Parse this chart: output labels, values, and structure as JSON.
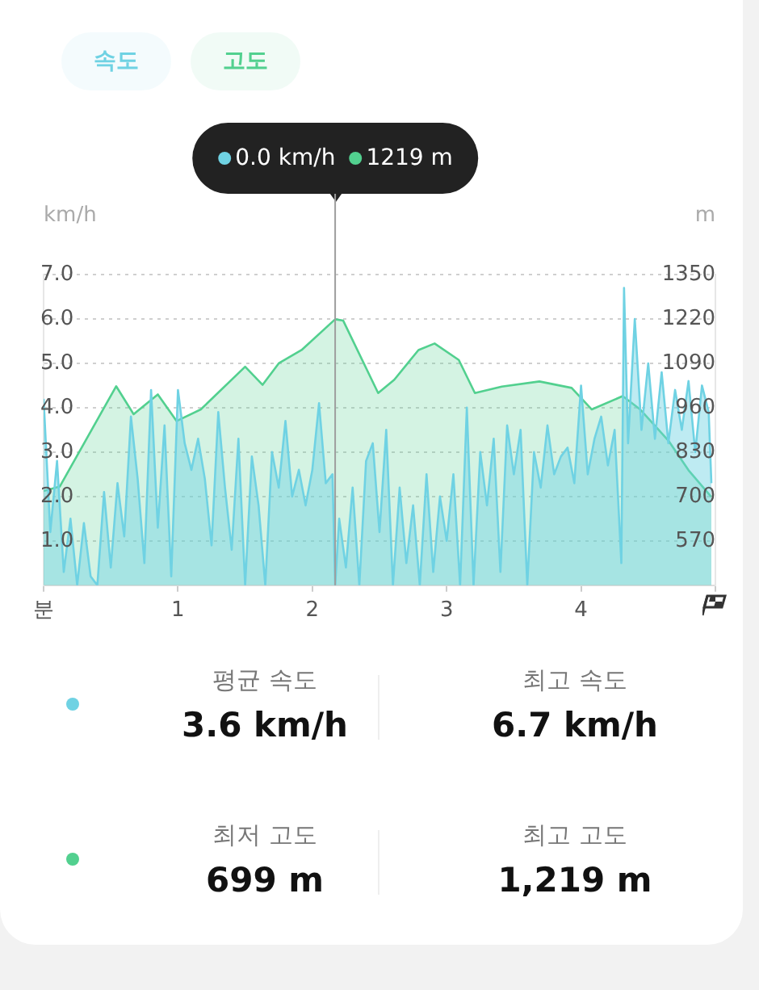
{
  "chart_data": {
    "type": "area",
    "ylabel": "km/h",
    "y2label": "m",
    "legend": "top left",
    "marker": "none",
    "line_style": "solid",
    "grid": "y",
    "xlim": [
      0,
      5
    ],
    "xticks": [
      {
        "value": 0,
        "label": "분"
      },
      1,
      2,
      3,
      4,
      {
        "value": 5,
        "label": null
      }
    ],
    "ylim": [
      0,
      7
    ],
    "yticks": [
      {
        "value": 1,
        "label": "1.0"
      },
      {
        "value": 2,
        "label": "2.0"
      },
      {
        "value": 3,
        "label": "3.0"
      },
      {
        "value": 4,
        "label": "4.0"
      },
      {
        "value": 5,
        "label": "5.0"
      },
      {
        "value": 6,
        "label": "6.0"
      },
      {
        "value": 7,
        "label": "7.0"
      }
    ],
    "y2lim": [
      440,
      1350
    ],
    "y2ticks": [
      570,
      700,
      830,
      960,
      1090,
      1220,
      1350
    ],
    "ref_lines": [
      {
        "axis": "x",
        "value": 2.17,
        "color": "#9e9e9e"
      }
    ],
    "annotations": [
      "0.0 km/h",
      "1219 m",
      "평균 속도",
      "3.6 km/h",
      "최고 속도",
      "6.7 km/h",
      "최저 고도",
      "699 m",
      "최고 고도",
      "1,219 m"
    ],
    "series": [
      {
        "name": "속도",
        "type": "area",
        "color": "#6fd2e3",
        "x": [
          0,
          0.05,
          0.1,
          0.15,
          0.2,
          0.25,
          0.3,
          0.35,
          0.4,
          0.45,
          0.5,
          0.55,
          0.6,
          0.65,
          0.7,
          0.75,
          0.8,
          0.85,
          0.9,
          0.95,
          1.0,
          1.05,
          1.1,
          1.15,
          1.2,
          1.25,
          1.3,
          1.35,
          1.4,
          1.45,
          1.5,
          1.55,
          1.6,
          1.65,
          1.7,
          1.75,
          1.8,
          1.85,
          1.9,
          1.95,
          2.0,
          2.05,
          2.1,
          2.15,
          2.17,
          2.2,
          2.25,
          2.3,
          2.35,
          2.4,
          2.45,
          2.5,
          2.55,
          2.6,
          2.65,
          2.7,
          2.75,
          2.8,
          2.85,
          2.9,
          2.95,
          3.0,
          3.05,
          3.1,
          3.15,
          3.2,
          3.25,
          3.3,
          3.35,
          3.4,
          3.45,
          3.5,
          3.55,
          3.6,
          3.65,
          3.7,
          3.75,
          3.8,
          3.85,
          3.9,
          3.95,
          4.0,
          4.05,
          4.1,
          4.15,
          4.2,
          4.25,
          4.3,
          4.32,
          4.35,
          4.4,
          4.45,
          4.5,
          4.55,
          4.6,
          4.65,
          4.7,
          4.75,
          4.8,
          4.85,
          4.9,
          4.95,
          4.97
        ],
        "values": [
          4.2,
          1.2,
          2.8,
          0.3,
          1.5,
          0,
          1.4,
          0.2,
          0,
          2.1,
          0.4,
          2.3,
          1.1,
          3.8,
          2.4,
          0.5,
          4.4,
          1.3,
          3.6,
          0.2,
          4.4,
          3.2,
          2.6,
          3.3,
          2.4,
          0.9,
          3.9,
          2.2,
          0.8,
          3.3,
          0,
          2.9,
          1.8,
          0,
          3.0,
          2.2,
          3.7,
          2.0,
          2.6,
          1.8,
          2.6,
          4.1,
          2.3,
          2.5,
          0,
          1.5,
          0.4,
          2.2,
          0,
          2.8,
          3.2,
          1.2,
          3.5,
          0,
          2.2,
          0.5,
          1.8,
          0,
          2.5,
          0.3,
          2.0,
          1.0,
          2.5,
          0,
          4.0,
          0,
          3.0,
          1.8,
          3.3,
          0.3,
          3.6,
          2.5,
          3.5,
          0,
          3.0,
          2.2,
          3.6,
          2.5,
          2.9,
          3.1,
          2.3,
          4.5,
          2.5,
          3.3,
          3.8,
          2.7,
          3.5,
          0.5,
          6.7,
          3.2,
          6.0,
          3.5,
          5.0,
          3.3,
          4.8,
          3.2,
          4.4,
          3.5,
          4.6,
          3.0,
          4.5,
          3.9,
          2.3
        ]
      },
      {
        "name": "고도",
        "type": "area",
        "axis": "y2",
        "color": "#52d08f",
        "x": [
          0,
          0.12,
          0.54,
          0.67,
          0.85,
          0.99,
          1.17,
          1.5,
          1.63,
          1.75,
          1.92,
          2.17,
          2.23,
          2.49,
          2.61,
          2.79,
          2.91,
          3.09,
          3.21,
          3.41,
          3.69,
          3.93,
          4.08,
          4.31,
          4.44,
          4.65,
          4.8,
          4.97
        ],
        "values": [
          716,
          729,
          1023,
          941,
          999,
          921,
          955,
          1080,
          1027,
          1090,
          1129,
          1219,
          1215,
          1003,
          1042,
          1129,
          1148,
          1100,
          1003,
          1022,
          1037,
          1018,
          955,
          994,
          955,
          864,
          777,
          699
        ]
      }
    ]
  }
}
